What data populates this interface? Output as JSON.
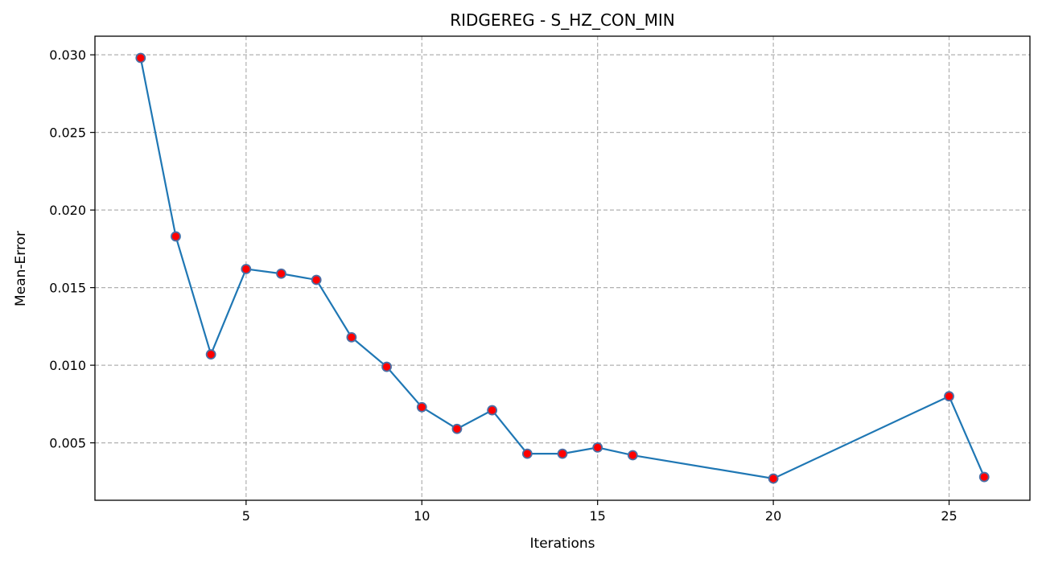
{
  "chart_data": {
    "type": "line",
    "title": "RIDGEREG - S_HZ_CON_MIN",
    "xlabel": "Iterations",
    "ylabel": "Mean-Error",
    "xlim": [
      0.7,
      27.3
    ],
    "ylim": [
      0.0013,
      0.0312
    ],
    "xticks": [
      5,
      10,
      15,
      20,
      25
    ],
    "yticks": [
      0.005,
      0.01,
      0.015,
      0.02,
      0.025,
      0.03
    ],
    "ytick_labels": [
      "0.005",
      "0.010",
      "0.015",
      "0.020",
      "0.025",
      "0.030"
    ],
    "grid": true,
    "series": [
      {
        "x": [
          2,
          3,
          4,
          5,
          6,
          7,
          8,
          9,
          10,
          11,
          12,
          13,
          14,
          15,
          16,
          20,
          25,
          26
        ],
        "values": [
          0.0298,
          0.0183,
          0.0107,
          0.0162,
          0.0159,
          0.0155,
          0.0118,
          0.0099,
          0.0073,
          0.0059,
          0.0071,
          0.0043,
          0.0043,
          0.0047,
          0.0042,
          0.0027,
          0.008,
          0.0028
        ],
        "line_color": "#1f77b4",
        "marker_face": "#ff0000",
        "marker_edge": "#4a6fa5"
      }
    ]
  }
}
